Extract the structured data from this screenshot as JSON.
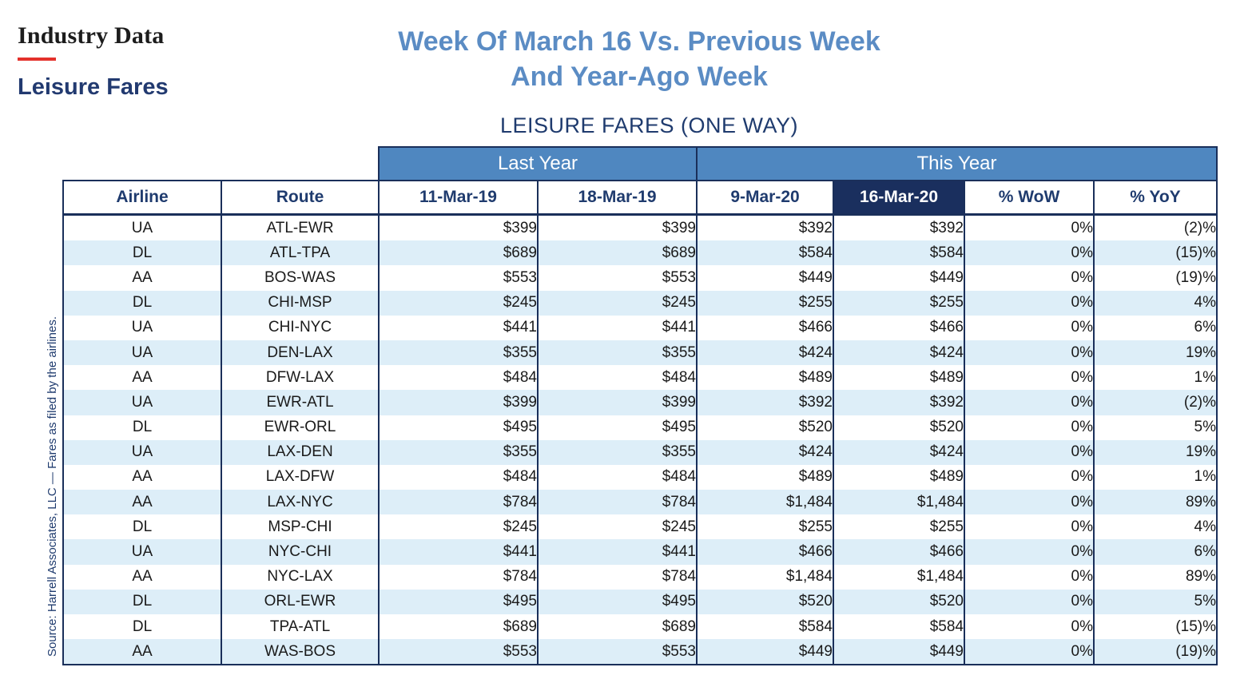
{
  "header": {
    "section": "Industry Data",
    "subsection": "Leisure Fares",
    "title_line1": "Week Of March 16 Vs. Previous Week",
    "title_line2": "And Year-Ago Week"
  },
  "table": {
    "title": "LEISURE FARES (ONE WAY)",
    "group_last_year": "Last Year",
    "group_this_year": "This Year",
    "columns": [
      "Airline",
      "Route",
      "11-Mar-19",
      "18-Mar-19",
      "9-Mar-20",
      "16-Mar-20",
      "% WoW",
      "% YoY"
    ],
    "rows": [
      [
        "UA",
        "ATL-EWR",
        "$399",
        "$399",
        "$392",
        "$392",
        "0%",
        "(2)%"
      ],
      [
        "DL",
        "ATL-TPA",
        "$689",
        "$689",
        "$584",
        "$584",
        "0%",
        "(15)%"
      ],
      [
        "AA",
        "BOS-WAS",
        "$553",
        "$553",
        "$449",
        "$449",
        "0%",
        "(19)%"
      ],
      [
        "DL",
        "CHI-MSP",
        "$245",
        "$245",
        "$255",
        "$255",
        "0%",
        "4%"
      ],
      [
        "UA",
        "CHI-NYC",
        "$441",
        "$441",
        "$466",
        "$466",
        "0%",
        "6%"
      ],
      [
        "UA",
        "DEN-LAX",
        "$355",
        "$355",
        "$424",
        "$424",
        "0%",
        "19%"
      ],
      [
        "AA",
        "DFW-LAX",
        "$484",
        "$484",
        "$489",
        "$489",
        "0%",
        "1%"
      ],
      [
        "UA",
        "EWR-ATL",
        "$399",
        "$399",
        "$392",
        "$392",
        "0%",
        "(2)%"
      ],
      [
        "DL",
        "EWR-ORL",
        "$495",
        "$495",
        "$520",
        "$520",
        "0%",
        "5%"
      ],
      [
        "UA",
        "LAX-DEN",
        "$355",
        "$355",
        "$424",
        "$424",
        "0%",
        "19%"
      ],
      [
        "AA",
        "LAX-DFW",
        "$484",
        "$484",
        "$489",
        "$489",
        "0%",
        "1%"
      ],
      [
        "AA",
        "LAX-NYC",
        "$784",
        "$784",
        "$1,484",
        "$1,484",
        "0%",
        "89%"
      ],
      [
        "DL",
        "MSP-CHI",
        "$245",
        "$245",
        "$255",
        "$255",
        "0%",
        "4%"
      ],
      [
        "UA",
        "NYC-CHI",
        "$441",
        "$441",
        "$466",
        "$466",
        "0%",
        "6%"
      ],
      [
        "AA",
        "NYC-LAX",
        "$784",
        "$784",
        "$1,484",
        "$1,484",
        "0%",
        "89%"
      ],
      [
        "DL",
        "ORL-EWR",
        "$495",
        "$495",
        "$520",
        "$520",
        "0%",
        "5%"
      ],
      [
        "DL",
        "TPA-ATL",
        "$689",
        "$689",
        "$584",
        "$584",
        "0%",
        "(15)%"
      ],
      [
        "AA",
        "WAS-BOS",
        "$553",
        "$553",
        "$449",
        "$449",
        "0%",
        "(19)%"
      ]
    ]
  },
  "source_note": "Source: Harrell Associates, LLC — Fares as filed by the airlines.",
  "colors": {
    "title_blue": "#5b8cc4",
    "navy": "#1f3b6e",
    "group_header": "#4f87c0",
    "highlight_header": "#1a2f5e",
    "row_stripe": "#ddeef8",
    "accent_red": "#e4312b"
  }
}
